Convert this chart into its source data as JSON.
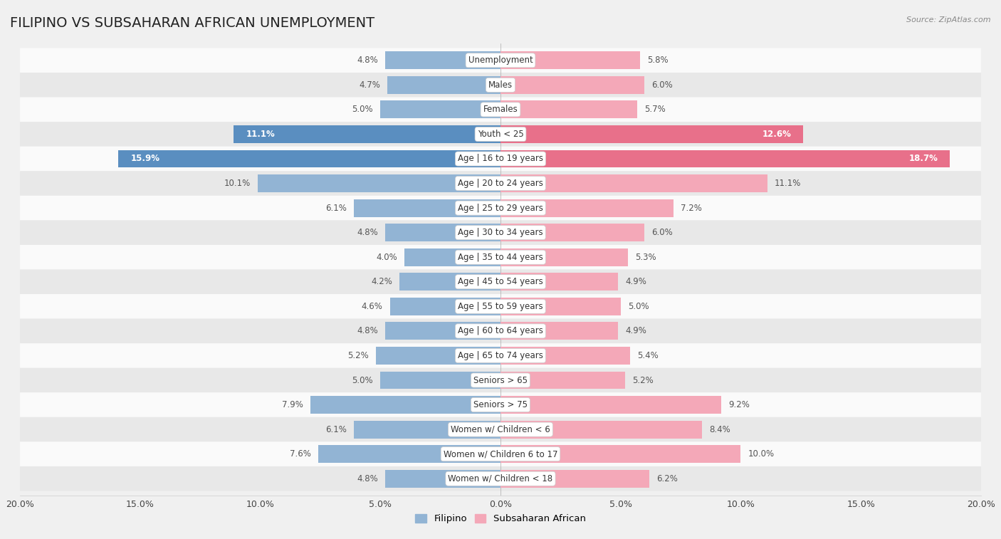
{
  "title": "FILIPINO VS SUBSAHARAN AFRICAN UNEMPLOYMENT",
  "source": "Source: ZipAtlas.com",
  "categories": [
    "Unemployment",
    "Males",
    "Females",
    "Youth < 25",
    "Age | 16 to 19 years",
    "Age | 20 to 24 years",
    "Age | 25 to 29 years",
    "Age | 30 to 34 years",
    "Age | 35 to 44 years",
    "Age | 45 to 54 years",
    "Age | 55 to 59 years",
    "Age | 60 to 64 years",
    "Age | 65 to 74 years",
    "Seniors > 65",
    "Seniors > 75",
    "Women w/ Children < 6",
    "Women w/ Children 6 to 17",
    "Women w/ Children < 18"
  ],
  "filipino_values": [
    4.8,
    4.7,
    5.0,
    11.1,
    15.9,
    10.1,
    6.1,
    4.8,
    4.0,
    4.2,
    4.6,
    4.8,
    5.2,
    5.0,
    7.9,
    6.1,
    7.6,
    4.8
  ],
  "subsaharan_values": [
    5.8,
    6.0,
    5.7,
    12.6,
    18.7,
    11.1,
    7.2,
    6.0,
    5.3,
    4.9,
    5.0,
    4.9,
    5.4,
    5.2,
    9.2,
    8.4,
    10.0,
    6.2
  ],
  "filipino_color": "#92b4d4",
  "subsaharan_color": "#f4a8b8",
  "highlight_rows": [
    3,
    4
  ],
  "highlight_filipino_color": "#5a8ec0",
  "highlight_subsaharan_color": "#e8708a",
  "bar_height": 0.72,
  "xlim": 20.0,
  "background_color": "#f0f0f0",
  "row_bg_light": "#fafafa",
  "row_bg_dark": "#e8e8e8",
  "title_fontsize": 14,
  "label_fontsize": 8.5,
  "value_fontsize": 8.5,
  "legend_fontsize": 9.5,
  "axis_label_fontsize": 9
}
